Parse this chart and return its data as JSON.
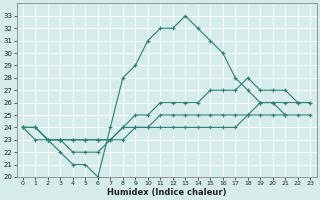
{
  "xlabel": "Humidex (Indice chaleur)",
  "bg_color": "#d6ecea",
  "grid_color": "#b8d8d4",
  "line_color": "#2d7d78",
  "xlim": [
    -0.5,
    23.5
  ],
  "ylim": [
    20,
    34
  ],
  "xticks": [
    0,
    1,
    2,
    3,
    4,
    5,
    6,
    7,
    8,
    9,
    10,
    11,
    12,
    13,
    14,
    15,
    16,
    17,
    18,
    19,
    20,
    21,
    22,
    23
  ],
  "yticks": [
    20,
    21,
    22,
    23,
    24,
    25,
    26,
    27,
    28,
    29,
    30,
    31,
    32,
    33
  ],
  "series": [
    {
      "x": [
        0,
        1,
        2,
        3,
        4,
        5,
        6,
        7,
        8,
        9,
        10,
        11,
        12,
        13,
        14,
        15,
        16,
        17,
        18,
        19,
        20,
        21
      ],
      "y": [
        24,
        23,
        23,
        22,
        21,
        21,
        20,
        24,
        28,
        29,
        31,
        32,
        32,
        33,
        32,
        31,
        30,
        28,
        27,
        26,
        26,
        25
      ]
    },
    {
      "x": [
        0,
        1,
        2,
        3,
        4,
        5,
        6,
        7,
        8,
        9,
        10,
        11,
        12,
        13,
        14,
        15,
        16,
        17,
        18,
        19,
        20,
        21,
        22,
        23
      ],
      "y": [
        24,
        24,
        23,
        23,
        22,
        22,
        22,
        23,
        24,
        25,
        25,
        26,
        26,
        26,
        26,
        27,
        27,
        27,
        28,
        27,
        27,
        27,
        26,
        26
      ]
    },
    {
      "x": [
        0,
        1,
        2,
        3,
        4,
        5,
        6,
        7,
        8,
        9,
        10,
        11,
        12,
        13,
        14,
        15,
        16,
        17,
        18,
        19,
        20,
        21,
        22,
        23
      ],
      "y": [
        24,
        24,
        23,
        23,
        23,
        23,
        23,
        23,
        24,
        24,
        24,
        25,
        25,
        25,
        25,
        25,
        25,
        25,
        25,
        26,
        26,
        26,
        26,
        26
      ]
    },
    {
      "x": [
        0,
        1,
        2,
        3,
        4,
        5,
        6,
        7,
        8,
        9,
        10,
        11,
        12,
        13,
        14,
        15,
        16,
        17,
        18,
        19,
        20,
        21,
        22,
        23
      ],
      "y": [
        24,
        24,
        23,
        23,
        23,
        23,
        23,
        23,
        23,
        24,
        24,
        24,
        24,
        24,
        24,
        24,
        24,
        24,
        25,
        25,
        25,
        25,
        25,
        25
      ]
    }
  ]
}
